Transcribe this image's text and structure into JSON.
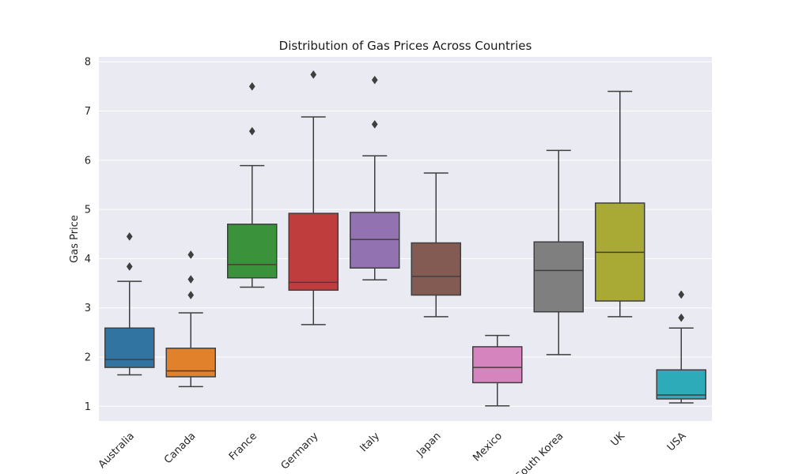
{
  "chart_data": {
    "type": "box",
    "title": "Distribution of Gas Prices Across Countries",
    "xlabel": "",
    "ylabel": "Gas Price",
    "ylim": [
      0.7,
      8.1
    ],
    "yticks": [
      1,
      2,
      3,
      4,
      5,
      6,
      7,
      8
    ],
    "grid": true,
    "categories": [
      "Australia",
      "Canada",
      "France",
      "Germany",
      "Italy",
      "Japan",
      "Mexico",
      "South Korea",
      "UK",
      "USA"
    ],
    "boxes": [
      {
        "category": "Australia",
        "whisker_low": 1.64,
        "q1": 1.79,
        "median": 1.95,
        "q3": 2.59,
        "whisker_high": 3.54,
        "outliers": [
          3.84,
          4.45
        ],
        "color": "#3274a1"
      },
      {
        "category": "Canada",
        "whisker_low": 1.4,
        "q1": 1.6,
        "median": 1.72,
        "q3": 2.18,
        "whisker_high": 2.9,
        "outliers": [
          3.26,
          3.58,
          4.08
        ],
        "color": "#e1812c"
      },
      {
        "category": "France",
        "whisker_low": 3.42,
        "q1": 3.61,
        "median": 3.88,
        "q3": 4.7,
        "whisker_high": 5.89,
        "outliers": [
          6.59,
          7.5
        ],
        "color": "#3a923a"
      },
      {
        "category": "Germany",
        "whisker_low": 2.66,
        "q1": 3.36,
        "median": 3.52,
        "q3": 4.92,
        "whisker_high": 6.88,
        "outliers": [
          7.74
        ],
        "color": "#c03d3e"
      },
      {
        "category": "Italy",
        "whisker_low": 3.57,
        "q1": 3.81,
        "median": 4.39,
        "q3": 4.94,
        "whisker_high": 6.09,
        "outliers": [
          6.73,
          7.63
        ],
        "color": "#9372b2"
      },
      {
        "category": "Japan",
        "whisker_low": 2.82,
        "q1": 3.26,
        "median": 3.64,
        "q3": 4.32,
        "whisker_high": 5.74,
        "outliers": [],
        "color": "#845b53"
      },
      {
        "category": "Mexico",
        "whisker_low": 1.01,
        "q1": 1.48,
        "median": 1.79,
        "q3": 2.21,
        "whisker_high": 2.44,
        "outliers": [],
        "color": "#d684bd"
      },
      {
        "category": "South Korea",
        "whisker_low": 2.05,
        "q1": 2.92,
        "median": 3.76,
        "q3": 4.34,
        "whisker_high": 6.2,
        "outliers": [],
        "color": "#7f7f7f"
      },
      {
        "category": "UK",
        "whisker_low": 2.82,
        "q1": 3.14,
        "median": 4.13,
        "q3": 5.13,
        "whisker_high": 7.4,
        "outliers": [],
        "color": "#a9aa35"
      },
      {
        "category": "USA",
        "whisker_low": 1.07,
        "q1": 1.15,
        "median": 1.23,
        "q3": 1.74,
        "whisker_high": 2.59,
        "outliers": [
          2.8,
          3.27
        ],
        "color": "#2eabb8"
      }
    ]
  },
  "style": {
    "plot_background": "#eaeaf2",
    "grid_color": "#ffffff",
    "line_color": "#3f3f3f"
  }
}
